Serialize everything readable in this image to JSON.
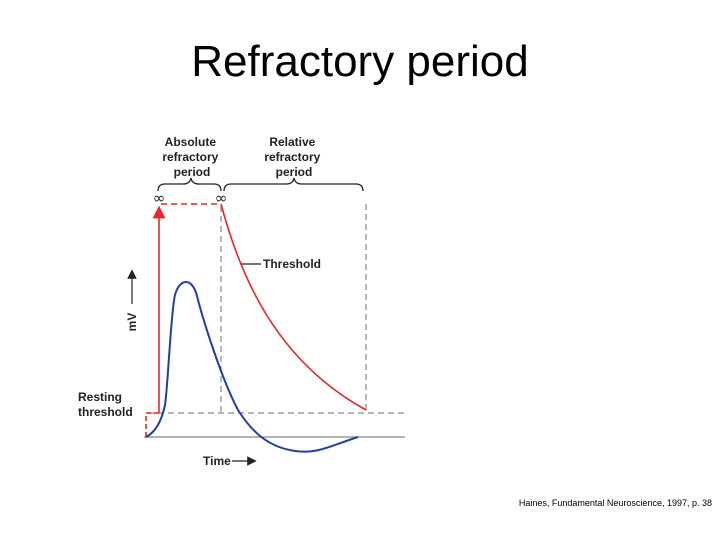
{
  "slide": {
    "title": "Refractory period",
    "citation": "Haines, Fundamental Neuroscience, 1997, p. 38"
  },
  "diagram": {
    "absolute_period": [
      "Absolute",
      "refractory",
      "period"
    ],
    "relative_period": [
      "Relative",
      "refractory",
      "period"
    ],
    "infinity_left": "∞",
    "infinity_right": "∞",
    "threshold_label": "Threshold",
    "y_axis_label": "mV",
    "resting_threshold": [
      "Resting",
      "threshold"
    ],
    "x_axis_label": "Time"
  },
  "colors": {
    "threshold_curve": "#e8262b",
    "action_potential": "#1f3fa8",
    "guide_lines": "#8a8a8a",
    "ink": "#222222"
  }
}
